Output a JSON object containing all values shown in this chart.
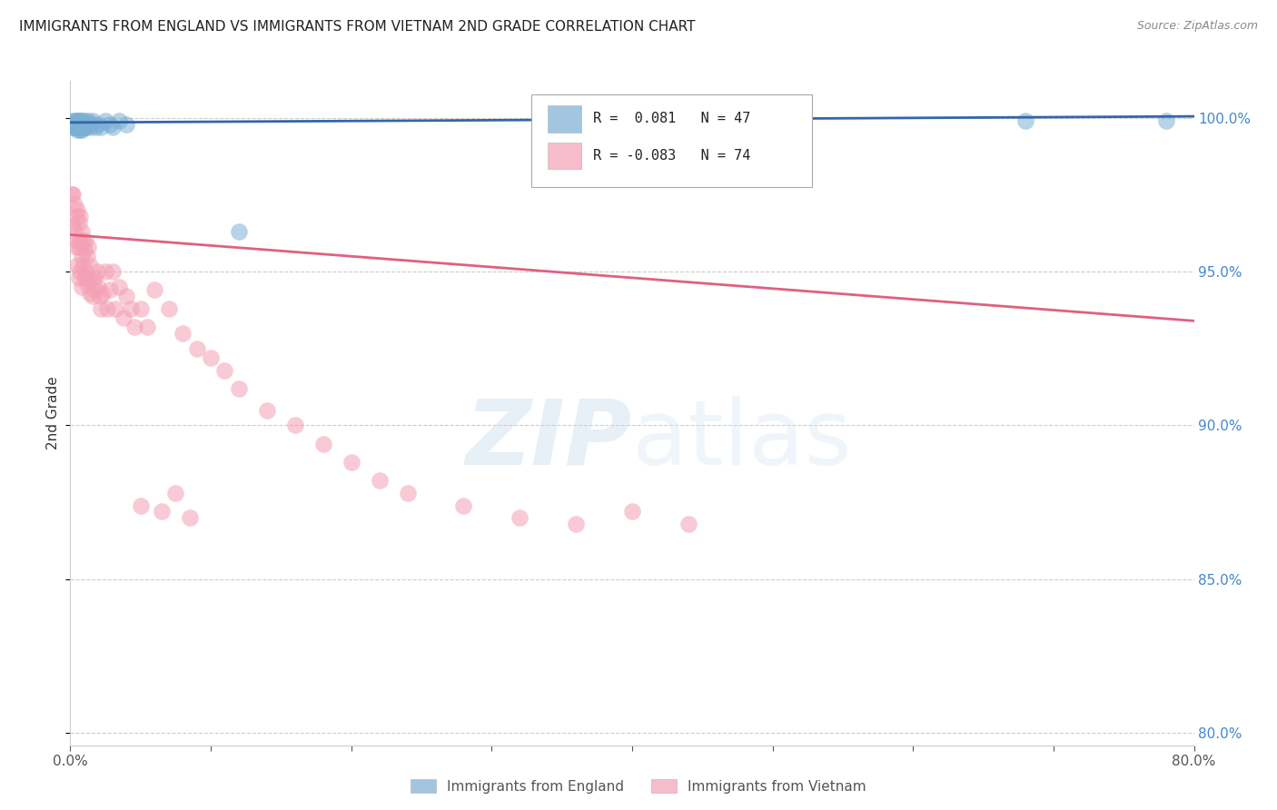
{
  "title": "IMMIGRANTS FROM ENGLAND VS IMMIGRANTS FROM VIETNAM 2ND GRADE CORRELATION CHART",
  "source": "Source: ZipAtlas.com",
  "ylabel": "2nd Grade",
  "color_england": "#7BAFD4",
  "color_vietnam": "#F4A0B5",
  "trendline_england_color": "#3366AA",
  "trendline_vietnam_color": "#E06080",
  "r_england": 0.081,
  "n_england": 47,
  "r_vietnam": -0.083,
  "n_vietnam": 74,
  "legend_england": "Immigrants from England",
  "legend_vietnam": "Immigrants from Vietnam",
  "xlim": [
    0.0,
    0.8
  ],
  "ylim": [
    0.796,
    1.012
  ],
  "yticks": [
    0.8,
    0.85,
    0.9,
    0.95,
    1.0
  ],
  "ytick_labels": [
    "80.0%",
    "85.0%",
    "90.0%",
    "95.0%",
    "100.0%"
  ],
  "xticks": [
    0.0,
    0.1,
    0.2,
    0.3,
    0.4,
    0.5,
    0.6,
    0.7,
    0.8
  ],
  "xtick_labels": [
    "0.0%",
    "",
    "",
    "",
    "",
    "",
    "",
    "",
    "80.0%"
  ],
  "england_x": [
    0.001,
    0.002,
    0.002,
    0.003,
    0.003,
    0.003,
    0.004,
    0.004,
    0.004,
    0.005,
    0.005,
    0.005,
    0.005,
    0.006,
    0.006,
    0.006,
    0.007,
    0.007,
    0.007,
    0.007,
    0.008,
    0.008,
    0.008,
    0.008,
    0.009,
    0.009,
    0.009,
    0.01,
    0.01,
    0.011,
    0.011,
    0.012,
    0.013,
    0.014,
    0.015,
    0.016,
    0.018,
    0.02,
    0.022,
    0.025,
    0.028,
    0.03,
    0.035,
    0.04,
    0.12,
    0.68,
    0.78
  ],
  "england_y": [
    0.998,
    0.999,
    0.997,
    0.999,
    0.998,
    0.997,
    0.999,
    0.998,
    0.997,
    0.999,
    0.998,
    0.997,
    0.996,
    0.999,
    0.998,
    0.997,
    0.999,
    0.998,
    0.997,
    0.996,
    0.999,
    0.998,
    0.997,
    0.996,
    0.999,
    0.998,
    0.997,
    0.998,
    0.997,
    0.999,
    0.997,
    0.998,
    0.999,
    0.997,
    0.998,
    0.999,
    0.997,
    0.998,
    0.997,
    0.999,
    0.998,
    0.997,
    0.999,
    0.998,
    0.963,
    0.999,
    0.999
  ],
  "vietnam_x": [
    0.001,
    0.002,
    0.002,
    0.003,
    0.003,
    0.004,
    0.004,
    0.005,
    0.005,
    0.005,
    0.006,
    0.006,
    0.006,
    0.007,
    0.007,
    0.007,
    0.008,
    0.008,
    0.008,
    0.009,
    0.009,
    0.01,
    0.01,
    0.011,
    0.011,
    0.012,
    0.012,
    0.013,
    0.013,
    0.014,
    0.014,
    0.015,
    0.016,
    0.017,
    0.018,
    0.019,
    0.02,
    0.021,
    0.022,
    0.023,
    0.025,
    0.026,
    0.028,
    0.03,
    0.032,
    0.035,
    0.038,
    0.04,
    0.043,
    0.046,
    0.05,
    0.055,
    0.06,
    0.07,
    0.08,
    0.09,
    0.1,
    0.11,
    0.12,
    0.14,
    0.16,
    0.18,
    0.2,
    0.22,
    0.24,
    0.28,
    0.32,
    0.36,
    0.4,
    0.44,
    0.05,
    0.065,
    0.075,
    0.085
  ],
  "vietnam_y": [
    0.975,
    0.975,
    0.965,
    0.972,
    0.963,
    0.968,
    0.958,
    0.97,
    0.96,
    0.952,
    0.966,
    0.958,
    0.948,
    0.968,
    0.96,
    0.95,
    0.963,
    0.955,
    0.945,
    0.96,
    0.952,
    0.957,
    0.948,
    0.96,
    0.95,
    0.955,
    0.946,
    0.958,
    0.948,
    0.952,
    0.943,
    0.947,
    0.942,
    0.948,
    0.944,
    0.95,
    0.945,
    0.942,
    0.938,
    0.943,
    0.95,
    0.938,
    0.944,
    0.95,
    0.938,
    0.945,
    0.935,
    0.942,
    0.938,
    0.932,
    0.938,
    0.932,
    0.944,
    0.938,
    0.93,
    0.925,
    0.922,
    0.918,
    0.912,
    0.905,
    0.9,
    0.894,
    0.888,
    0.882,
    0.878,
    0.874,
    0.87,
    0.868,
    0.872,
    0.868,
    0.874,
    0.872,
    0.878,
    0.87
  ],
  "eng_trend_x": [
    0.0,
    0.8
  ],
  "eng_trend_y": [
    0.9985,
    1.0005
  ],
  "viet_trend_x": [
    0.0,
    0.8
  ],
  "viet_trend_y": [
    0.962,
    0.934
  ]
}
